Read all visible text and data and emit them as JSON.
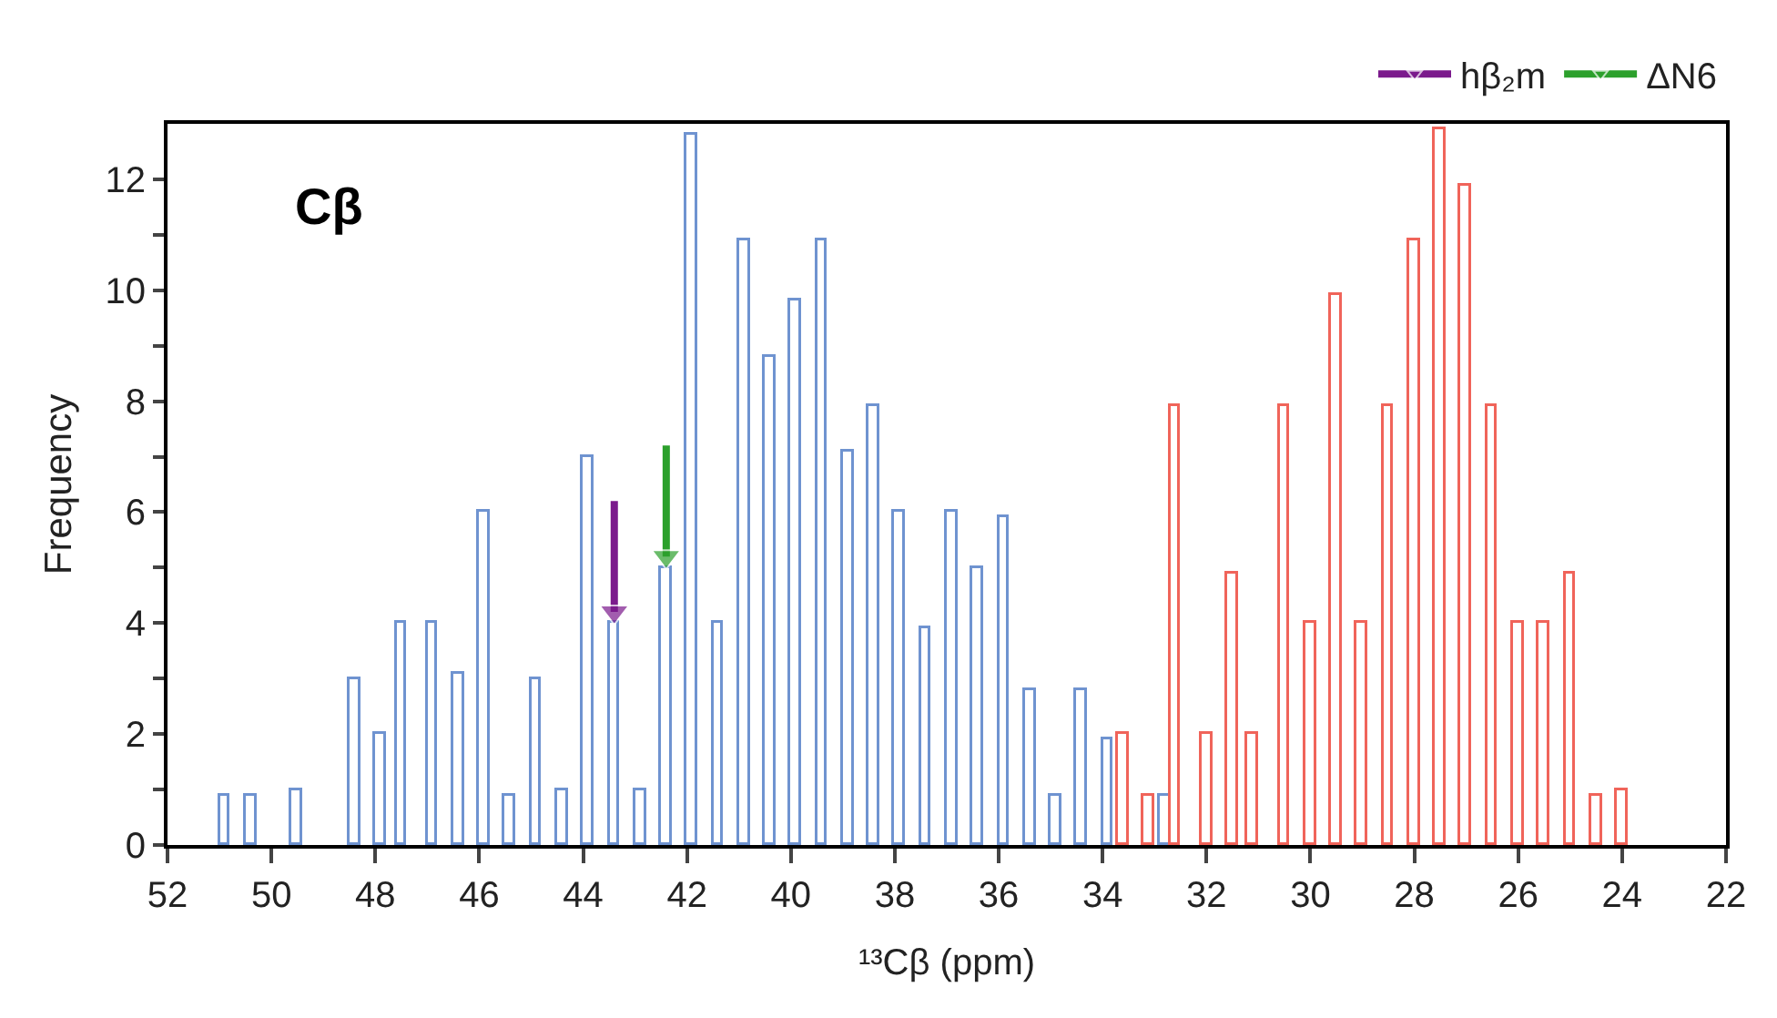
{
  "chart_data": {
    "type": "bar",
    "title": "Cβ",
    "xlabel": "¹³Cβ (ppm)",
    "ylabel": "Frequency",
    "xlim": [
      52,
      22
    ],
    "xticks": [
      52,
      50,
      48,
      46,
      44,
      42,
      40,
      38,
      36,
      34,
      32,
      30,
      28,
      26,
      24,
      22
    ],
    "ylim": [
      0,
      13
    ],
    "yticks": [
      0,
      {
        "value": 1,
        "label": null
      },
      2,
      {
        "value": 3,
        "label": null
      },
      4,
      {
        "value": 5,
        "label": null
      },
      6,
      {
        "value": 7,
        "label": null
      },
      8,
      {
        "value": 9,
        "label": null
      },
      10,
      {
        "value": 11,
        "label": null
      },
      12
    ],
    "grid": false,
    "legend": "top right",
    "series": [
      {
        "color": "#6f93d0",
        "x": [
          50.9,
          50.4,
          49.5,
          48.4,
          47.9,
          47.5,
          46.9,
          46.4,
          45.9,
          45.4,
          44.9,
          44.4,
          43.9,
          43.4,
          42.9,
          42.4,
          41.9,
          41.4,
          40.9,
          40.4,
          39.9,
          39.4,
          38.9,
          38.4,
          37.9,
          37.4,
          36.9,
          36.4,
          35.9,
          35.4,
          34.9,
          34.4,
          33.9,
          32.8
        ],
        "values": [
          0.9,
          0.9,
          1.0,
          3.0,
          2.0,
          4.0,
          4.0,
          3.1,
          6.0,
          0.9,
          3.0,
          1.0,
          7.0,
          4.0,
          1.0,
          5.0,
          12.8,
          4.0,
          10.9,
          8.8,
          9.8,
          10.9,
          7.1,
          7.9,
          6.0,
          3.9,
          6.0,
          5.0,
          5.9,
          2.8,
          0.9,
          2.8,
          1.9,
          0.9
        ]
      },
      {
        "color": "#f0645a",
        "x": [
          33.6,
          33.1,
          32.6,
          32.0,
          31.5,
          31.1,
          30.5,
          30.0,
          29.5,
          29.0,
          28.5,
          28.0,
          27.5,
          27.0,
          26.5,
          26.0,
          25.5,
          25.0,
          24.5,
          24.0
        ],
        "values": [
          2.0,
          0.9,
          7.9,
          2.0,
          4.9,
          2.0,
          7.9,
          4.0,
          9.9,
          4.0,
          7.9,
          10.9,
          12.9,
          11.9,
          7.9,
          4.0,
          4.0,
          4.9,
          0.9,
          1.0
        ]
      },
      {
        "type": "line",
        "name": "hβ₂m",
        "color": "#7b1a8c",
        "marker": "triangle",
        "x": [
          43.4,
          43.4
        ],
        "values": [
          6.2,
          4.2
        ]
      },
      {
        "type": "line",
        "name": "ΔN6",
        "color": "#2ca02c",
        "marker": "triangle",
        "x": [
          42.4,
          42.4
        ],
        "values": [
          7.2,
          5.2
        ]
      }
    ]
  }
}
